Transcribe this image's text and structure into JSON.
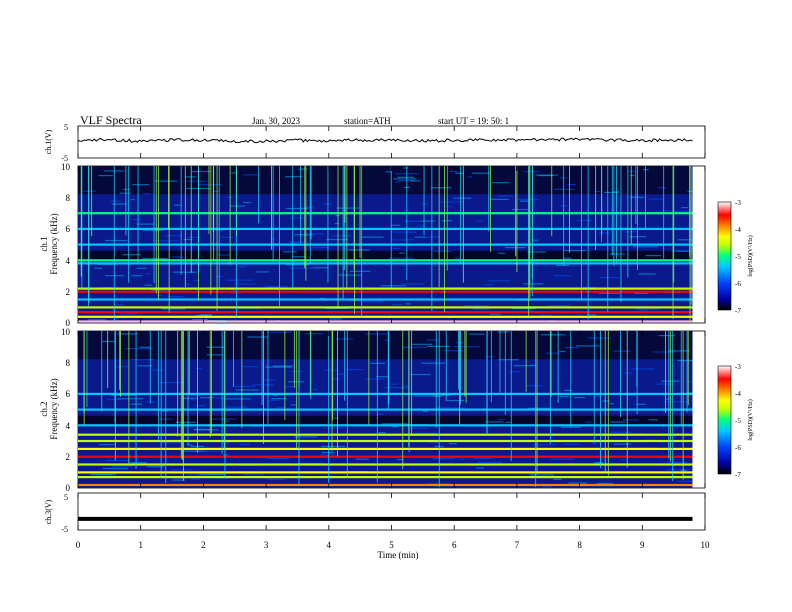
{
  "header": {
    "title": "VLF  Spectra",
    "date": "Jan. 30, 2023",
    "station": "station=ATH",
    "start": "start  UT  =   19: 50: 1"
  },
  "chart_data": [
    {
      "type": "line",
      "name": "ch1-waveform",
      "ylabel": "ch.1(V)",
      "ylim": [
        -5,
        5
      ],
      "yticks": [
        "5",
        "-5"
      ],
      "x": [
        0,
        0.5,
        1,
        1.5,
        2,
        2.5,
        3,
        3.5,
        4,
        4.5,
        5,
        5.5,
        6,
        6.5,
        7,
        7.5,
        8,
        8.5,
        9,
        9.5,
        9.8
      ],
      "y": [
        0.5,
        0.8,
        0.2,
        0.7,
        0.5,
        0.3,
        0.2,
        0.5,
        0.4,
        0.6,
        0.6,
        0.4,
        0.5,
        0.7,
        0.6,
        0.7,
        0.9,
        0.6,
        0.5,
        0.6,
        0.6
      ]
    },
    {
      "type": "heatmap",
      "name": "ch1-spectrogram",
      "ylabel": "ch.1\nFrequency  (kHz)",
      "ylim": [
        0,
        10
      ],
      "yticks": [
        "0",
        "2",
        "4",
        "6",
        "8",
        "10"
      ],
      "xlim": [
        0,
        9.8
      ],
      "colorbar": {
        "label": "log(PSD)(V²/Hz)",
        "range": [
          -7,
          -3
        ],
        "ticks": [
          "-3",
          "-4",
          "-5",
          "-6",
          "-7"
        ]
      },
      "bands_khz": [
        {
          "f": 0.1,
          "level": -3.3
        },
        {
          "f": 0.4,
          "level": -4.6
        },
        {
          "f": 0.7,
          "level": -3.8
        },
        {
          "f": 1.0,
          "level": -5.0
        },
        {
          "f": 1.5,
          "level": -5.4
        },
        {
          "f": 2.0,
          "level": -3.6
        },
        {
          "f": 2.2,
          "level": -4.8
        },
        {
          "f": 3.8,
          "level": -5.6
        },
        {
          "f": 4.0,
          "level": -5.2
        },
        {
          "f": 5.0,
          "level": -5.5
        },
        {
          "f": 6.0,
          "level": -5.4
        },
        {
          "f": 7.0,
          "level": -5.3
        }
      ]
    },
    {
      "type": "heatmap",
      "name": "ch2-spectrogram",
      "ylabel": "ch.2\nFrequency  (kHz)",
      "ylim": [
        0,
        10
      ],
      "yticks": [
        "0",
        "2",
        "4",
        "6",
        "8",
        "10"
      ],
      "xlim": [
        0,
        9.8
      ],
      "colorbar": {
        "label": "log(PSD)(V²/Hz)",
        "range": [
          -7,
          -3
        ],
        "ticks": [
          "-3",
          "-4",
          "-5",
          "-6",
          "-7"
        ]
      },
      "bands_khz": [
        {
          "f": 0.2,
          "level": -4.2
        },
        {
          "f": 0.7,
          "level": -4.8
        },
        {
          "f": 1.0,
          "level": -4.6
        },
        {
          "f": 1.5,
          "level": -5.0
        },
        {
          "f": 2.0,
          "level": -3.7
        },
        {
          "f": 2.5,
          "level": -4.6
        },
        {
          "f": 3.0,
          "level": -5.0
        },
        {
          "f": 3.4,
          "level": -4.8
        },
        {
          "f": 4.0,
          "level": -5.4
        },
        {
          "f": 5.0,
          "level": -5.6
        },
        {
          "f": 6.0,
          "level": -5.6
        }
      ]
    },
    {
      "type": "line",
      "name": "ch3-waveform",
      "ylabel": "ch.3(V)",
      "ylim": [
        -5,
        5
      ],
      "yticks": [
        "5",
        "-5"
      ],
      "x": [
        0,
        9.8
      ],
      "y": [
        -2.0,
        -2.0
      ]
    }
  ],
  "xaxis": {
    "label": "Time  (min)",
    "ticks": [
      "0",
      "1",
      "2",
      "3",
      "4",
      "5",
      "6",
      "7",
      "8",
      "9",
      "10"
    ],
    "xlim": [
      0,
      10
    ]
  },
  "colors": {
    "colormap": [
      "#000000",
      "#0000a0",
      "#0044ff",
      "#00c8ff",
      "#00ff80",
      "#c0ff00",
      "#ffff00",
      "#ff8000",
      "#ff0000",
      "#ffc0c0",
      "#ffffff"
    ]
  }
}
